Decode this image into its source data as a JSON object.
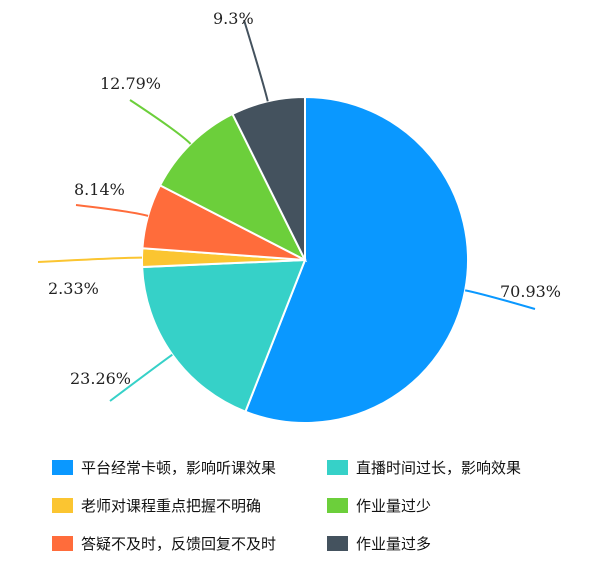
{
  "chart_data": {
    "type": "pie",
    "title": "",
    "slices": [
      {
        "label": "平台经常卡顿，影响听课效果",
        "value": 70.93,
        "display": "70.93%",
        "color": "#0a98ff"
      },
      {
        "label": "直播时间过长，影响效果",
        "value": 23.26,
        "display": "23.26%",
        "color": "#36d1c8"
      },
      {
        "label": "老师对课程重点把握不明确",
        "value": 2.33,
        "display": "2.33%",
        "color": "#fbc531"
      },
      {
        "label": "答疑不及时，反馈回复不及时",
        "value": 8.14,
        "display": "8.14%",
        "color": "#ff6c3b"
      },
      {
        "label": "作业量过少",
        "value": 12.79,
        "display": "12.79%",
        "color": "#6ccf3b"
      },
      {
        "label": "作业量过多",
        "value": 9.3,
        "display": "9.3%",
        "color": "#44525e"
      }
    ],
    "legend_placement": "bottom"
  },
  "legend": {
    "rows": [
      [
        0,
        1
      ],
      [
        2,
        4
      ],
      [
        3,
        5
      ]
    ]
  }
}
